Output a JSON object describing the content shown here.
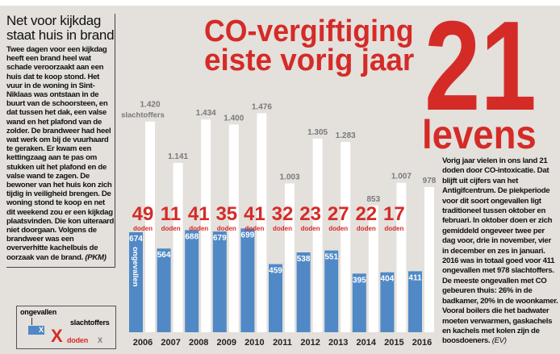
{
  "sidebar": {
    "title": "Net voor kijkdag staat huis in brand",
    "body": "Twee dagen voor een kijkdag heeft een brand heel wat schade veroorzaakt aan een huis dat te koop stond. Het vuur in de woning in Sint-Niklaas was ontstaan in de buurt van de schoorsteen, en dat tussen het dak, een valse wand en het plafond van de zolder. De brandweer had heel wat werk om bij de vuurhaard te geraken. Er kwam een kettingzaag aan te pas om stukken uit het plafond en de valse wand te zagen. De bewoner van het huis kon zich tijdig in veiligheid brengen. De woning stond te koop en net dit weekend zou er een kijkdag plaatsvinden. Die kon uiteraard niet doorgaan. Volgens de brandweer was een oververhitte kachelbuis de oorzaak van de brand.",
    "credit": "(PKM)"
  },
  "headline": {
    "line1": "CO-vergiftiging",
    "line2": "eiste vorig jaar",
    "number": "21",
    "unit": "levens"
  },
  "article": {
    "body": "Vorig jaar vielen in ons land 21 doden door CO-intoxicatie. Dat blijft uit cijfers van het Antigifcentrum. De piekperiode voor dit soort ongevallen ligt traditioneel tussen oktober en februari. In oktober doen er zich gemiddeld ongeveer twee per dag voor, drie in november, vier in december en zes in januari. 2016 was in totaal goed voor 411 ongevallen met 978 slachtoffers. De meeste ongevallen met CO gebeuren thuis: 26% in de badkamer, 20% in de woonkamer. Vooral boilers die het badwater moeten verwarmen, gaskachels en kachels met kolen zijn de boosdoeners.",
    "credit": "(EV)"
  },
  "legend": {
    "ongevallen": "ongevallen",
    "slachtoffers": "slachtoffers",
    "x": "X",
    "doden": "doden"
  },
  "colors": {
    "red": "#d52b27",
    "blue": "#5089c6",
    "gray_label": "#7a7a7a",
    "background": "#e4e0dc"
  },
  "chart_data": {
    "type": "bar",
    "categories": [
      "2006",
      "2007",
      "2008",
      "2009",
      "2010",
      "2011",
      "2012",
      "2013",
      "2014",
      "2015",
      "2016"
    ],
    "series": [
      {
        "name": "ongevallen",
        "values": [
          674,
          564,
          688,
          679,
          699,
          459,
          538,
          551,
          395,
          404,
          411
        ],
        "color": "#5089c6",
        "labels": [
          "674",
          "564",
          "688",
          "679",
          "699",
          "459",
          "538",
          "551",
          "395",
          "404",
          "411"
        ]
      },
      {
        "name": "slachtoffers",
        "values": [
          1420,
          1141,
          1434,
          1400,
          1476,
          1003,
          1305,
          1283,
          853,
          1007,
          978
        ],
        "color": "#ffffff",
        "labels": [
          "1.420",
          "1.141",
          "1.434",
          "1.400",
          "1.476",
          "1.003",
          "1.305",
          "1.283",
          "853",
          "1.007",
          "978"
        ]
      },
      {
        "name": "doden",
        "values": [
          49,
          11,
          41,
          35,
          41,
          32,
          23,
          27,
          22,
          17,
          21
        ],
        "labels": [
          "49",
          "11",
          "41",
          "35",
          "41",
          "32",
          "23",
          "27",
          "22",
          "17",
          ""
        ]
      }
    ],
    "doden_unit": "doden",
    "first_bar_labels": {
      "ongevallen": "ongevallen",
      "slachtoffers": "slachtoffers"
    },
    "ylim": [
      0,
      1500
    ],
    "grid": false
  }
}
